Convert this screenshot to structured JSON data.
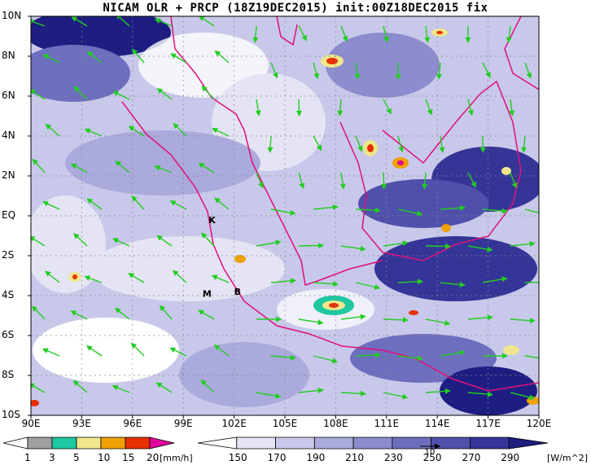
{
  "title": "NICAM OLR + PRCP (18Z19DEC2015) init:00Z18DEC2015 fix",
  "lat_labels": [
    "10N",
    "8N",
    "6N",
    "4N",
    "2N",
    "EQ",
    "2S",
    "4S",
    "6S",
    "8S",
    "10S"
  ],
  "lon_labels": [
    "90E",
    "93E",
    "96E",
    "99E",
    "102E",
    "105E",
    "108E",
    "111E",
    "114E",
    "117E",
    "120E"
  ],
  "stations": [
    {
      "id": "K",
      "lon": 100.7,
      "lat": -0.2
    },
    {
      "id": "M",
      "lon": 100.4,
      "lat": -3.9
    },
    {
      "id": "B",
      "lon": 102.2,
      "lat": -3.8
    }
  ],
  "prcp_colorbar": {
    "ticks": [
      "1",
      "3",
      "5",
      "10",
      "15",
      "20"
    ],
    "unit": "[mm/h]",
    "colors": [
      "#ffffff",
      "#a0a0a0",
      "#1ec8a0",
      "#f0e68c",
      "#f0a000",
      "#e83000",
      "#e0009a"
    ]
  },
  "olr_colorbar": {
    "ticks": [
      "150",
      "170",
      "190",
      "210",
      "230",
      "250",
      "270",
      "290"
    ],
    "unit": "[W/m^2]",
    "colors": [
      "#ffffff",
      "#e4e4f4",
      "#c8c8ea",
      "#aaaadc",
      "#8c8cce",
      "#6e6ebf",
      "#5050ac",
      "#353598",
      "#1e1e82"
    ]
  },
  "vector_ref_label": "10",
  "colors": {
    "coast": "#e0107a",
    "wind": "#22cc22",
    "grid": "#888888"
  }
}
